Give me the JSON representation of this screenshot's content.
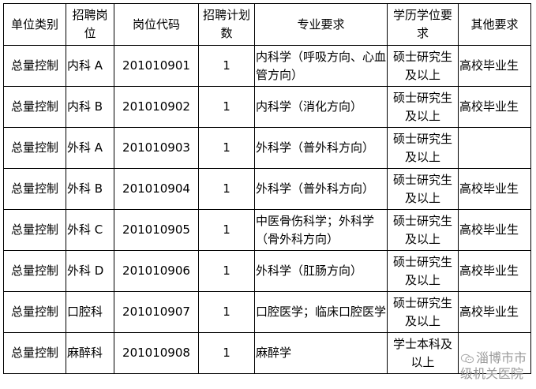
{
  "headers": [
    "单位类别",
    "招聘岗位",
    "岗位代码",
    "招聘计划数",
    "专业要求",
    "学历学位要求",
    "其他要求"
  ],
  "rows": [
    {
      "unit": "总量控制",
      "post": "内科 A",
      "code": "201010901",
      "count": "1",
      "major": "内科学（呼吸方向、心血管方向）",
      "degree": "硕士研究生及以上",
      "other": "高校毕业生"
    },
    {
      "unit": "总量控制",
      "post": "内科 B",
      "code": "201010902",
      "count": "1",
      "major": "内科学（消化方向）",
      "degree": "硕士研究生及以上",
      "other": "高校毕业生"
    },
    {
      "unit": "总量控制",
      "post": "外科 A",
      "code": "201010903",
      "count": "1",
      "major": "外科学（普外科方向）",
      "degree": "硕士研究生及以上",
      "other": ""
    },
    {
      "unit": "总量控制",
      "post": "外科 B",
      "code": "201010904",
      "count": "1",
      "major": "外科学（普外科方向）",
      "degree": "硕士研究生及以上",
      "other": "高校毕业生"
    },
    {
      "unit": "总量控制",
      "post": "外科 C",
      "code": "201010905",
      "count": "1",
      "major": "中医骨伤科学；外科学（骨外科方向）",
      "degree": "硕士研究生及以上",
      "other": "高校毕业生"
    },
    {
      "unit": "总量控制",
      "post": "外科 D",
      "code": "201010906",
      "count": "1",
      "major": "外科学（肛肠方向）",
      "degree": "硕士研究生及以上",
      "other": "高校毕业生"
    },
    {
      "unit": "总量控制",
      "post": "口腔科",
      "code": "201010907",
      "count": "1",
      "major": "口腔医学；临床口腔医学",
      "degree": "硕士研究生及以上",
      "other": "高校毕业生"
    },
    {
      "unit": "总量控制",
      "post": "麻醉科",
      "code": "201010908",
      "count": "1",
      "major": "麻醉学",
      "degree": "学士本科及以上",
      "other": ""
    }
  ],
  "watermark": {
    "text": "淄博市市级机关医院",
    "icon": "wechat-icon"
  }
}
